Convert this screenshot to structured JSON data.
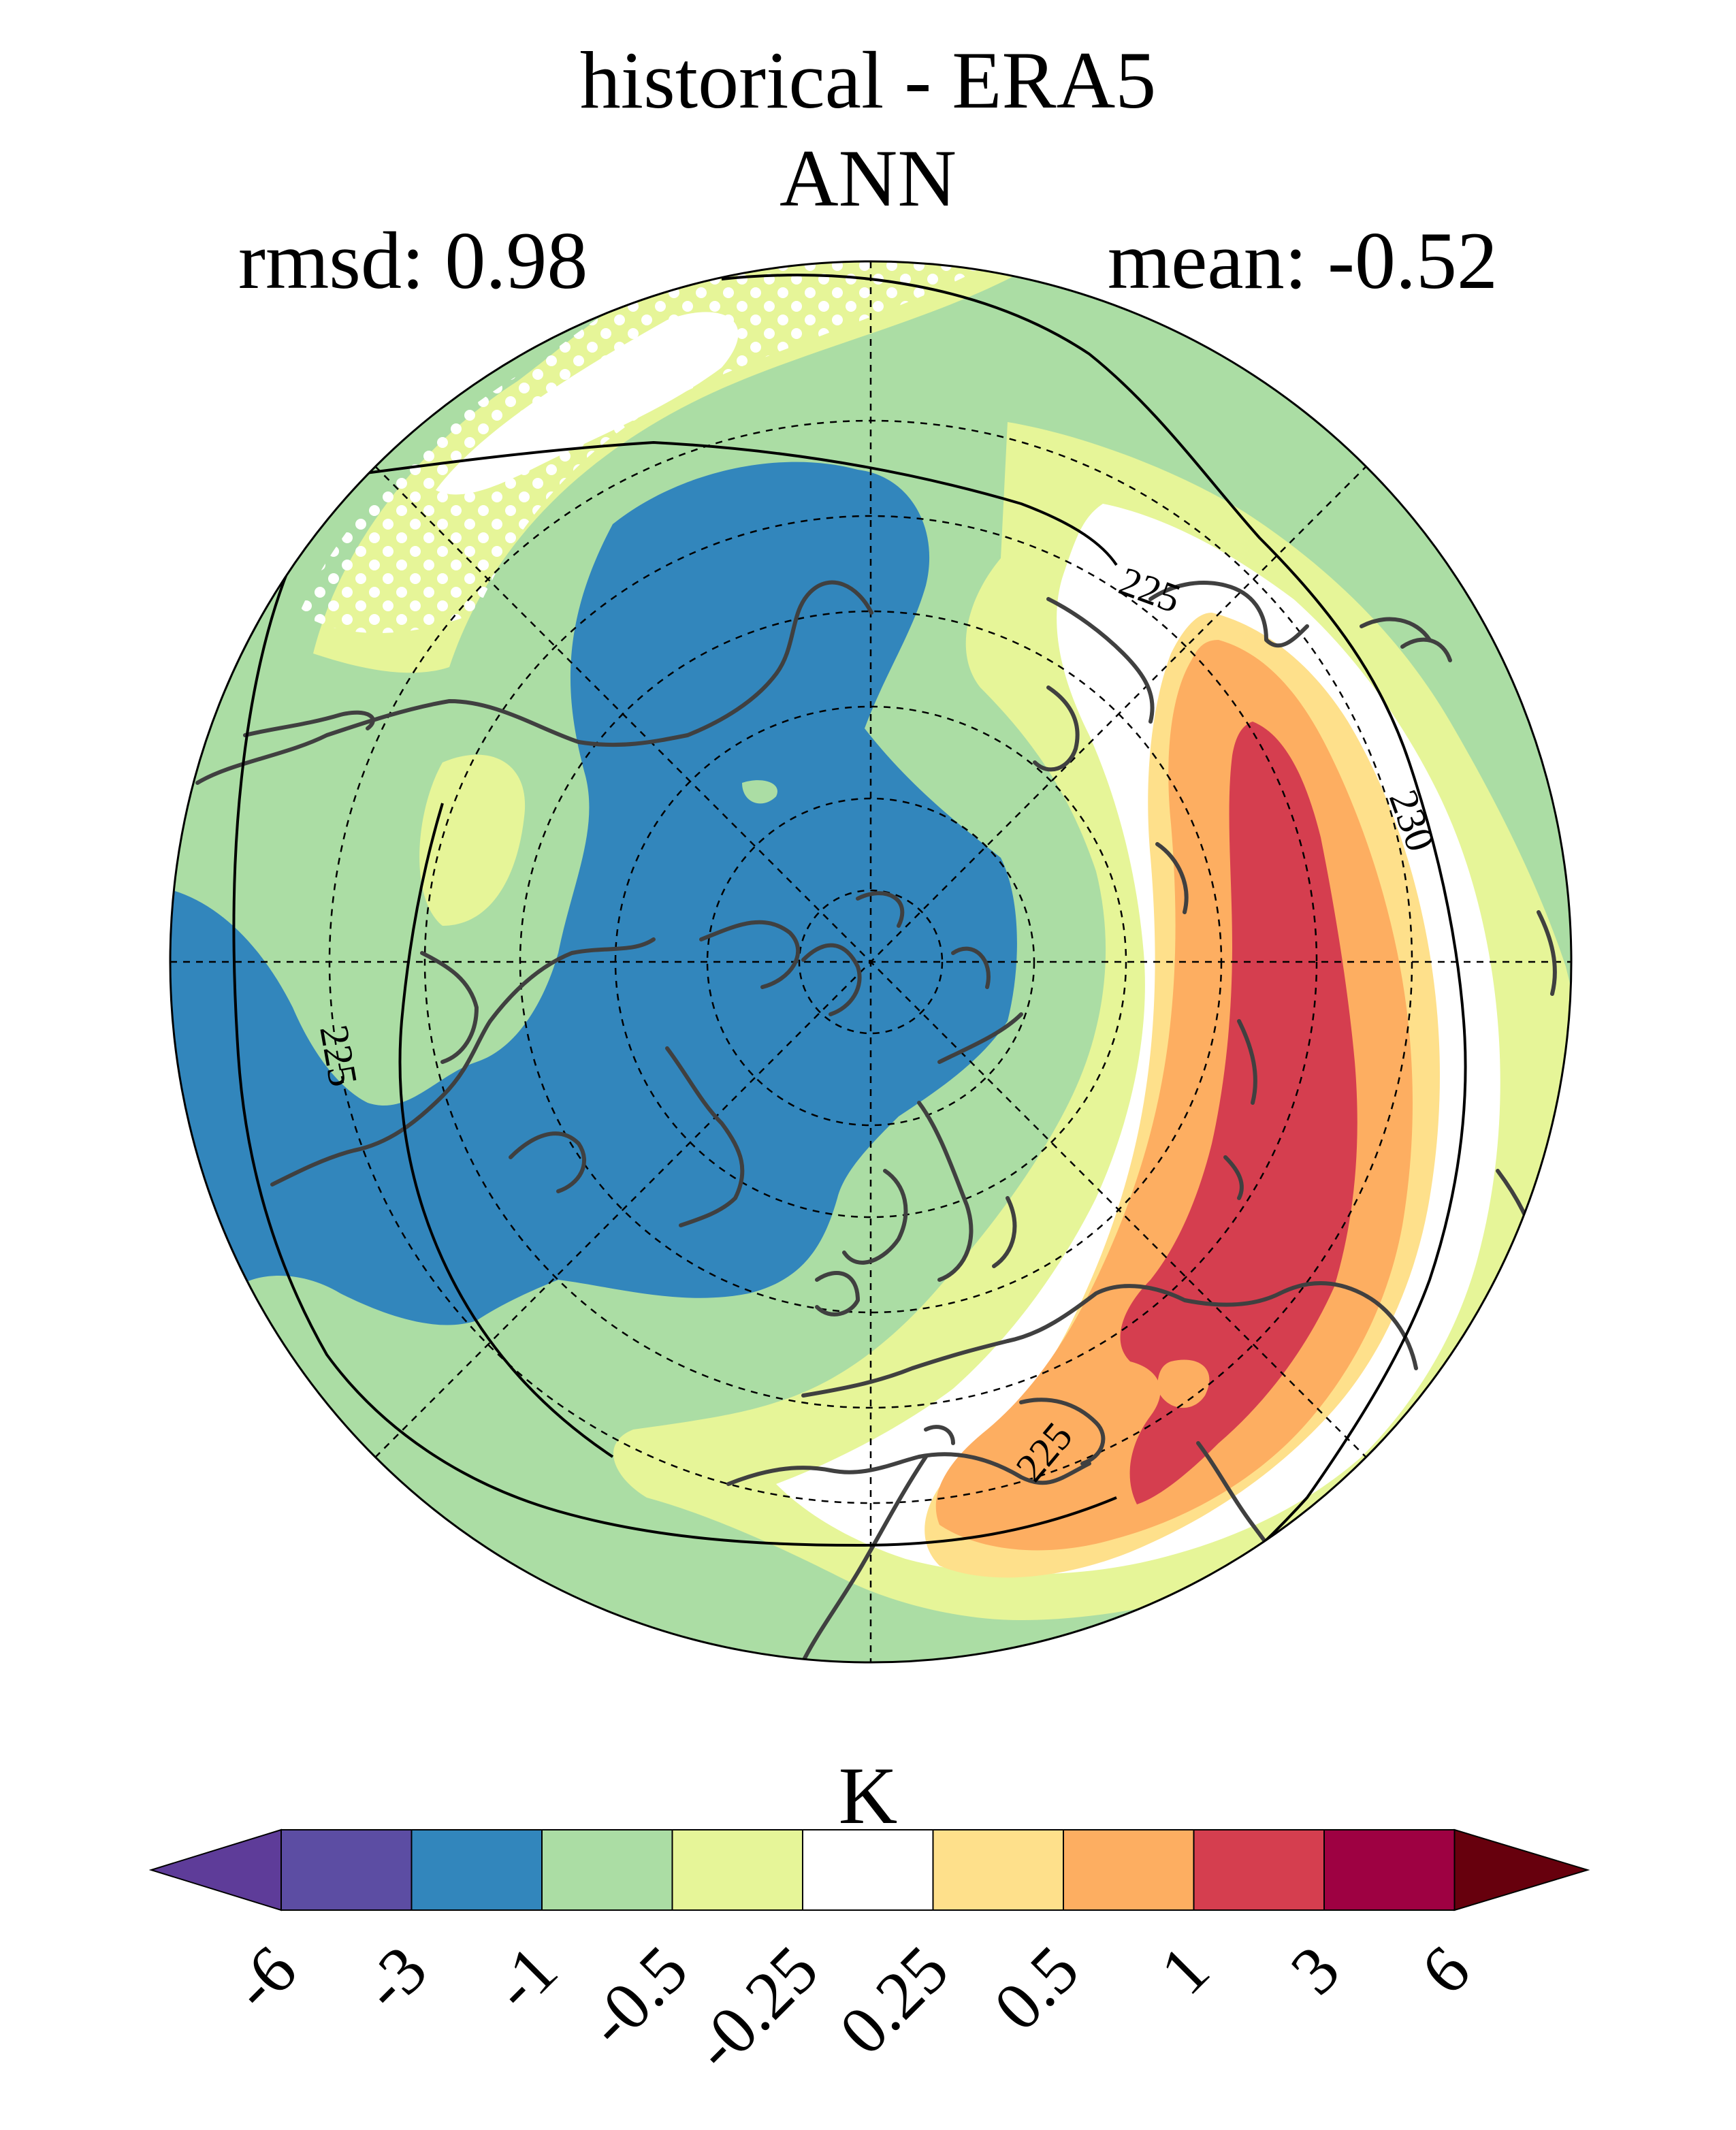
{
  "title": "historical - ERA5",
  "subtitle": "ANN",
  "stats": {
    "rmsd": "rmsd: 0.98",
    "mean": "mean: -0.52"
  },
  "colorbar": {
    "unit": "K",
    "ticks": [
      "-6",
      "-3",
      "-1",
      "-0.5",
      "-0.25",
      "0.25",
      "0.5",
      "1",
      "3",
      "6"
    ],
    "colors": [
      "#5e3c99",
      "#5c4da3",
      "#3286bc",
      "#abdda4",
      "#e6f598",
      "#ffffff",
      "#fee08b",
      "#fdae61",
      "#d53e4f",
      "#9e0142",
      "#67000d"
    ]
  },
  "map": {
    "projection": "north-polar-stereographic",
    "contour_labels": [
      "225",
      "225",
      "225",
      "230"
    ],
    "field_colors": {
      "strong_neg": "#3286bc",
      "neg": "#abdda4",
      "weak_neg": "#e6f598",
      "neutral": "#ffffff",
      "weak_pos": "#fee08b",
      "pos": "#fdae61",
      "strong_pos": "#d53e4f"
    }
  }
}
